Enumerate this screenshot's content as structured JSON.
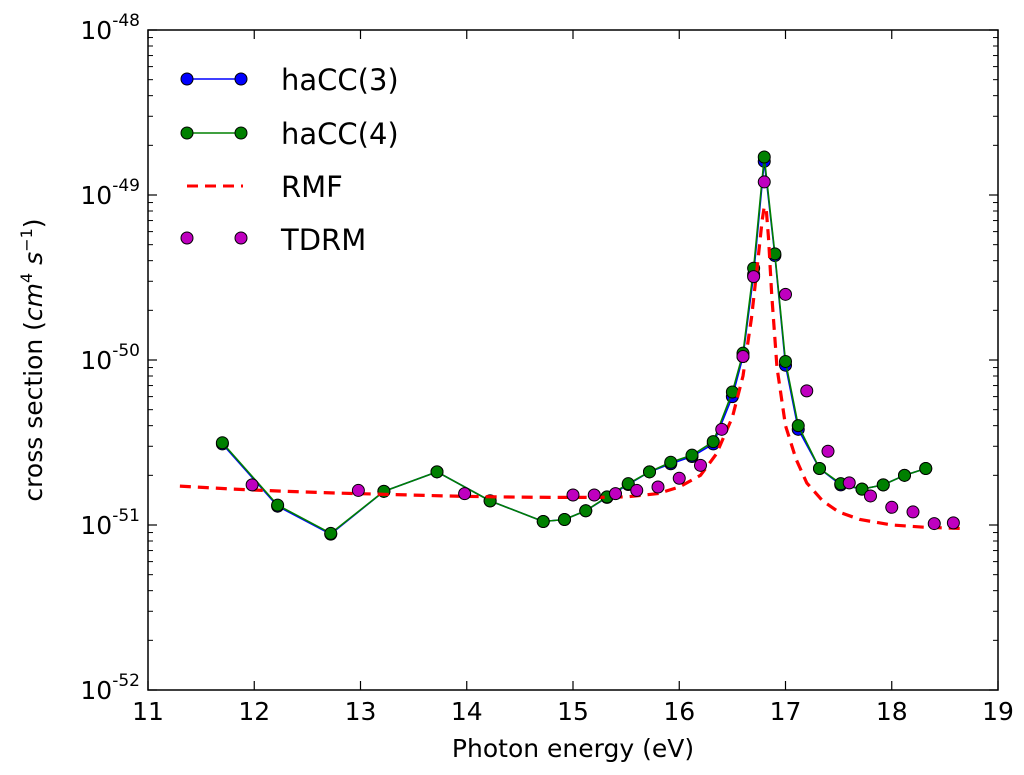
{
  "chart_data": {
    "type": "line",
    "title": "",
    "xlabel": "Photon energy (eV)",
    "ylabel_prefix": "cross section (",
    "ylabel_math": "cm",
    "ylabel_exp1": "4",
    "ylabel_space": " s",
    "ylabel_exp2": "−1",
    "ylabel_suffix": ")",
    "xlim": [
      11,
      19
    ],
    "ylim": [
      1e-52,
      1e-48
    ],
    "yscale": "log",
    "xticks": [
      "11",
      "12",
      "13",
      "14",
      "15",
      "16",
      "17",
      "18",
      "19"
    ],
    "yticks": [
      {
        "base": "10",
        "exp": "-52",
        "value": -52
      },
      {
        "base": "10",
        "exp": "-51",
        "value": -51
      },
      {
        "base": "10",
        "exp": "-50",
        "value": -50
      },
      {
        "base": "10",
        "exp": "-49",
        "value": -49
      },
      {
        "base": "10",
        "exp": "-48",
        "value": -48
      }
    ],
    "legend_position": "top-left",
    "series": [
      {
        "name": "haCC(3)",
        "style": "line-marker",
        "line_color": "#0000ff",
        "marker_color": "#0000ff",
        "x": [
          11.7,
          12.22,
          12.72,
          13.22,
          13.72,
          14.22,
          14.72,
          14.92,
          15.12,
          15.32,
          15.52,
          15.72,
          15.92,
          16.12,
          16.32,
          16.5,
          16.6,
          16.7,
          16.8,
          16.9,
          17.0,
          17.12,
          17.32,
          17.52,
          17.72,
          17.92,
          18.12,
          18.32
        ],
        "y": [
          3.1e-51,
          1.3e-51,
          8.8e-52,
          1.6e-51,
          2.1e-51,
          1.4e-51,
          1.05e-51,
          1.08e-51,
          1.22e-51,
          1.47e-51,
          1.76e-51,
          2.1e-51,
          2.35e-51,
          2.6e-51,
          3.1e-51,
          6e-51,
          1.05e-50,
          3.3e-50,
          1.6e-49,
          4.3e-50,
          9.3e-51,
          3.8e-51,
          2.2e-51,
          1.75e-51,
          1.65e-51,
          1.75e-51,
          2e-51,
          2.2e-51
        ]
      },
      {
        "name": "haCC(4)",
        "style": "line-marker",
        "line_color": "#008000",
        "marker_color": "#008000",
        "x": [
          11.7,
          12.22,
          12.72,
          13.22,
          13.72,
          14.22,
          14.72,
          14.92,
          15.12,
          15.32,
          15.52,
          15.72,
          15.92,
          16.12,
          16.32,
          16.5,
          16.6,
          16.7,
          16.8,
          16.9,
          17.0,
          17.12,
          17.32,
          17.52,
          17.72,
          17.92,
          18.12,
          18.32
        ],
        "y": [
          3.15e-51,
          1.32e-51,
          8.9e-52,
          1.6e-51,
          2.1e-51,
          1.4e-51,
          1.05e-51,
          1.08e-51,
          1.22e-51,
          1.48e-51,
          1.78e-51,
          2.1e-51,
          2.4e-51,
          2.65e-51,
          3.2e-51,
          6.4e-51,
          1.1e-50,
          3.6e-50,
          1.7e-49,
          4.4e-50,
          9.8e-51,
          4e-51,
          2.2e-51,
          1.78e-51,
          1.65e-51,
          1.75e-51,
          2e-51,
          2.2e-51
        ]
      },
      {
        "name": "RMF",
        "style": "dashed",
        "line_color": "#ff0000",
        "x": [
          11.3,
          11.8,
          12.3,
          12.8,
          13.3,
          13.8,
          14.3,
          14.8,
          15.2,
          15.5,
          15.8,
          16.0,
          16.2,
          16.35,
          16.5,
          16.6,
          16.68,
          16.74,
          16.78,
          16.8,
          16.82,
          16.84,
          16.87,
          16.92,
          17.0,
          17.1,
          17.2,
          17.35,
          17.5,
          17.7,
          18.0,
          18.3,
          18.7
        ],
        "y": [
          1.72e-51,
          1.65e-51,
          1.6e-51,
          1.56e-51,
          1.53e-51,
          1.5e-51,
          1.48e-51,
          1.47e-51,
          1.47e-51,
          1.48e-51,
          1.55e-51,
          1.7e-51,
          2e-51,
          2.7e-51,
          4.5e-51,
          8e-51,
          1.8e-50,
          4e-50,
          7e-50,
          8.5e-50,
          8e-50,
          5.5e-50,
          2.5e-50,
          9e-51,
          4e-51,
          2.5e-51,
          1.8e-51,
          1.4e-51,
          1.2e-51,
          1.08e-51,
          1e-51,
          9.7e-52,
          9.5e-52
        ]
      },
      {
        "name": "TDRM",
        "style": "marker",
        "marker_color": "#bf00bf",
        "x": [
          11.98,
          12.98,
          13.98,
          15.0,
          15.2,
          15.4,
          15.6,
          15.8,
          16.0,
          16.2,
          16.4,
          16.6,
          16.7,
          16.8,
          17.0,
          17.2,
          17.4,
          17.6,
          17.8,
          18.0,
          18.2,
          18.4,
          18.58
        ],
        "y": [
          1.75e-51,
          1.62e-51,
          1.55e-51,
          1.52e-51,
          1.52e-51,
          1.55e-51,
          1.62e-51,
          1.7e-51,
          1.92e-51,
          2.3e-51,
          3.8e-51,
          1.05e-50,
          3.2e-50,
          1.2e-49,
          2.5e-50,
          6.5e-51,
          2.8e-51,
          1.8e-51,
          1.5e-51,
          1.28e-51,
          1.2e-51,
          1.02e-51,
          1.03e-51
        ]
      }
    ]
  }
}
